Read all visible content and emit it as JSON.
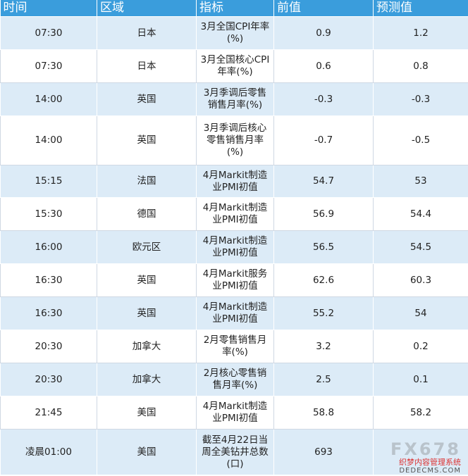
{
  "headers": [
    "时间",
    "区域",
    "指标",
    "前值",
    "预测值"
  ],
  "rows": [
    {
      "time": "07:30",
      "region": "日本",
      "indicator": "3月全国CPI年率(%)",
      "previous": "0.9",
      "forecast": "1.2"
    },
    {
      "time": "07:30",
      "region": "日本",
      "indicator": "3月全国核心CPI年率(%)",
      "previous": "0.6",
      "forecast": "0.8"
    },
    {
      "time": "14:00",
      "region": "英国",
      "indicator": "3月季调后零售销售月率(%)",
      "previous": "-0.3",
      "forecast": "-0.3"
    },
    {
      "time": "14:00",
      "region": "英国",
      "indicator": "3月季调后核心零售销售月率(%)",
      "previous": "-0.7",
      "forecast": "-0.5"
    },
    {
      "time": "15:15",
      "region": "法国",
      "indicator": "4月Markit制造业PMI初值",
      "previous": "54.7",
      "forecast": "53"
    },
    {
      "time": "15:30",
      "region": "德国",
      "indicator": "4月Markit制造业PMI初值",
      "previous": "56.9",
      "forecast": "54.4"
    },
    {
      "time": "16:00",
      "region": "欧元区",
      "indicator": "4月Markit制造业PMI初值",
      "previous": "56.5",
      "forecast": "54.5"
    },
    {
      "time": "16:30",
      "region": "英国",
      "indicator": "4月Markit服务业PMI初值",
      "previous": "62.6",
      "forecast": "60.3"
    },
    {
      "time": "16:30",
      "region": "英国",
      "indicator": "4月Markit制造业PMI初值",
      "previous": "55.2",
      "forecast": "54"
    },
    {
      "time": "20:30",
      "region": "加拿大",
      "indicator": "2月零售销售月率(%)",
      "previous": "3.2",
      "forecast": "0.2"
    },
    {
      "time": "20:30",
      "region": "加拿大",
      "indicator": "2月核心零售销售月率(%)",
      "previous": "2.5",
      "forecast": "0.1"
    },
    {
      "time": "21:45",
      "region": "美国",
      "indicator": "4月Markit制造业PMI初值",
      "previous": "58.8",
      "forecast": "58.2"
    },
    {
      "time": "凌晨01:00",
      "region": "美国",
      "indicator": "截至4月22日当周全美钻井总数(口)",
      "previous": "693",
      "forecast": ""
    }
  ],
  "watermark": {
    "logo": "FX678",
    "text": "织梦内容管理系统",
    "sub": "DEDECMS.COM"
  },
  "colors": {
    "header_bg": "#3a9ddc",
    "band": "#dcebf7"
  }
}
